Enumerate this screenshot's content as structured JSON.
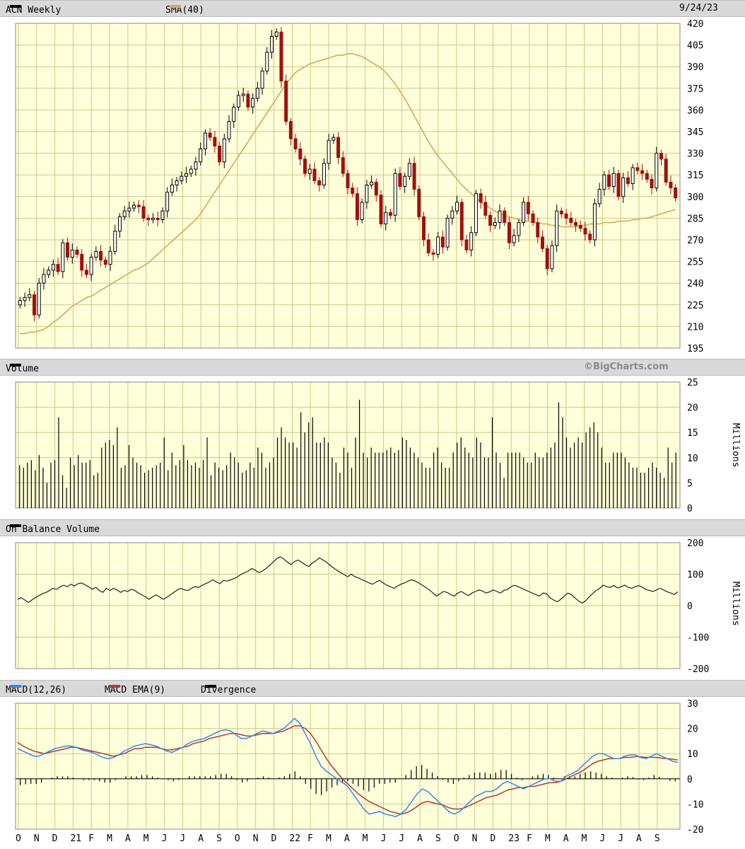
{
  "headers": {
    "price": {
      "symbol": "ACN Weekly",
      "sma": "SMA(40)",
      "date": "9/24/23"
    },
    "volume": {
      "label": "Volume",
      "watermark": "©BigCharts.com"
    },
    "obv": {
      "label": "On Balance Volume"
    },
    "macd": {
      "label": "MACD(12,26)",
      "ema": "MACD EMA(9)",
      "div": "Divergence"
    }
  },
  "units": {
    "volume": "Millions",
    "obv": "Millions"
  },
  "colors": {
    "up": "#000000",
    "down": "#a01010",
    "sma": "#d8a85c",
    "macd": "#3388ee",
    "ema": "#b03a3a",
    "grid": "#c9c98f",
    "bg": "#ffffd9"
  },
  "chart_data": [
    {
      "type": "candlestick",
      "name": "price",
      "ylim": [
        195,
        420
      ],
      "yticks": [
        195,
        210,
        225,
        240,
        255,
        270,
        285,
        300,
        315,
        330,
        345,
        360,
        375,
        390,
        405,
        420
      ],
      "xticks": [
        "O",
        "N",
        "D",
        "21",
        "F",
        "M",
        "A",
        "M",
        "J",
        "J",
        "A",
        "S",
        "O",
        "N",
        "D",
        "22",
        "F",
        "M",
        "A",
        "M",
        "J",
        "J",
        "A",
        "S",
        "O",
        "N",
        "D",
        "23",
        "F",
        "M",
        "A",
        "M",
        "J",
        "J",
        "A",
        "S"
      ],
      "close": [
        228,
        230,
        232,
        218,
        240,
        246,
        249,
        253,
        248,
        268,
        258,
        263,
        260,
        249,
        246,
        258,
        262,
        256,
        253,
        262,
        276,
        286,
        290,
        292,
        294,
        293,
        285,
        284,
        285,
        284,
        290,
        303,
        308,
        311,
        314,
        316,
        319,
        324,
        333,
        344,
        341,
        335,
        324,
        340,
        352,
        362,
        370,
        371,
        362,
        368,
        375,
        387,
        400,
        411,
        414,
        380,
        352,
        340,
        333,
        326,
        316,
        319,
        311,
        308,
        323,
        339,
        341,
        327,
        316,
        306,
        302,
        284,
        296,
        308,
        310,
        301,
        281,
        289,
        287,
        316,
        307,
        314,
        323,
        305,
        286,
        270,
        261,
        260,
        272,
        265,
        285,
        290,
        296,
        270,
        263,
        275,
        302,
        296,
        287,
        280,
        282,
        290,
        282,
        268,
        273,
        282,
        296,
        288,
        282,
        272,
        264,
        250,
        266,
        290,
        288,
        285,
        282,
        280,
        278,
        274,
        270,
        295,
        305,
        315,
        307,
        316,
        300,
        313,
        309,
        320,
        318,
        316,
        312,
        306,
        330,
        326,
        310,
        306,
        299
      ],
      "sma": [
        205,
        205,
        206,
        206,
        207,
        208,
        210,
        213,
        215,
        218,
        221,
        224,
        226,
        228,
        230,
        231,
        233,
        235,
        237,
        239,
        241,
        243,
        245,
        247,
        249,
        250,
        252,
        254,
        257,
        260,
        263,
        266,
        269,
        272,
        275,
        278,
        281,
        284,
        288,
        293,
        298,
        303,
        308,
        313,
        318,
        323,
        328,
        333,
        338,
        343,
        348,
        353,
        358,
        363,
        368,
        373,
        378,
        382,
        386,
        388,
        390,
        392,
        393,
        394,
        395,
        396,
        397,
        398,
        398,
        399,
        399,
        398,
        397,
        395,
        393,
        391,
        389,
        386,
        382,
        378,
        373,
        368,
        362,
        356,
        350,
        344,
        338,
        333,
        328,
        324,
        320,
        316,
        312,
        308,
        305,
        302,
        299,
        296,
        294,
        292,
        290,
        288,
        287,
        286,
        285,
        284,
        283,
        283,
        282,
        282,
        281,
        281,
        280,
        280,
        279,
        279,
        279,
        279,
        280,
        280,
        281,
        281,
        281,
        282,
        282,
        282,
        283,
        283,
        283,
        284,
        284,
        285,
        285,
        286,
        287,
        288,
        289,
        290,
        291
      ]
    },
    {
      "type": "bar",
      "name": "volume",
      "ylim": [
        0,
        25
      ],
      "yticks": [
        0,
        5,
        10,
        15,
        20,
        25
      ],
      "values": [
        8.5,
        8,
        9,
        9.5,
        7.5,
        10.5,
        8,
        5,
        9,
        9.5,
        18,
        6.5,
        4,
        10,
        8.5,
        10.5,
        9,
        9,
        9.5,
        6.5,
        7,
        12,
        13,
        13.5,
        12.5,
        16,
        8,
        8.5,
        12.5,
        10,
        9,
        8.5,
        7,
        7.5,
        8,
        8.5,
        9,
        14,
        7.5,
        11,
        8.5,
        9.5,
        12.5,
        9.5,
        8.5,
        9,
        8,
        9.5,
        14,
        6.5,
        9,
        8,
        7.5,
        8.5,
        11,
        10,
        9,
        7,
        7.5,
        9,
        8,
        12,
        11,
        8,
        9,
        10,
        14,
        16,
        14,
        13,
        13,
        12,
        19,
        15,
        17,
        18,
        13,
        13,
        14,
        13,
        10,
        9,
        7,
        12,
        11,
        8,
        14,
        21.5,
        11,
        10,
        12,
        11,
        11,
        11,
        11.5,
        12,
        11,
        11.5,
        14,
        13.5,
        12,
        11,
        10,
        9,
        8,
        8,
        11,
        12,
        9,
        8,
        8,
        11,
        13,
        14,
        12,
        11,
        10,
        14,
        13,
        10,
        10,
        18,
        11,
        9,
        6,
        11,
        11,
        11,
        11,
        10,
        9,
        9,
        11,
        10,
        10,
        11,
        12,
        13,
        21,
        18,
        14,
        12,
        13,
        14,
        13,
        15,
        16,
        17,
        15,
        12,
        9,
        9,
        11,
        11,
        11,
        10,
        9,
        8,
        8,
        7,
        7,
        8,
        9,
        8,
        7,
        6,
        12,
        9,
        11
      ]
    },
    {
      "type": "line",
      "name": "obv",
      "ylim": [
        -200,
        200
      ],
      "yticks": [
        -200,
        -100,
        0,
        100,
        200
      ],
      "values": [
        20,
        25,
        18,
        10,
        18,
        25,
        32,
        38,
        42,
        48,
        55,
        52,
        60,
        65,
        60,
        68,
        62,
        70,
        72,
        66,
        60,
        52,
        58,
        48,
        42,
        55,
        48,
        55,
        50,
        42,
        48,
        45,
        52,
        48,
        40,
        34,
        28,
        20,
        28,
        34,
        28,
        20,
        26,
        34,
        42,
        50,
        55,
        50,
        48,
        55,
        60,
        58,
        65,
        70,
        75,
        82,
        75,
        70,
        80,
        78,
        82,
        86,
        92,
        100,
        105,
        110,
        118,
        112,
        105,
        110,
        118,
        128,
        138,
        150,
        155,
        148,
        138,
        130,
        140,
        145,
        138,
        130,
        124,
        135,
        142,
        152,
        145,
        138,
        128,
        120,
        112,
        105,
        98,
        92,
        100,
        92,
        88,
        82,
        78,
        72,
        68,
        75,
        80,
        72,
        65,
        60,
        55,
        62,
        68,
        72,
        78,
        82,
        78,
        72,
        65,
        58,
        50,
        40,
        30,
        38,
        45,
        42,
        35,
        30,
        40,
        45,
        38,
        32,
        40,
        45,
        50,
        46,
        40,
        44,
        50,
        45,
        40,
        48,
        52,
        60,
        65,
        60,
        55,
        50,
        45,
        40,
        35,
        30,
        40,
        38,
        25,
        18,
        12,
        20,
        30,
        40,
        35,
        25,
        15,
        8,
        15,
        28,
        38,
        48,
        55,
        65,
        60,
        58,
        64,
        56,
        60,
        65,
        58,
        55,
        60,
        64,
        58,
        52,
        48,
        45,
        50,
        55,
        50,
        44,
        40,
        35,
        44
      ]
    },
    {
      "type": "line",
      "name": "macd",
      "ylim": [
        -20,
        30
      ],
      "yticks": [
        -20,
        -10,
        0,
        10,
        20,
        30
      ],
      "macd": [
        12,
        11,
        10,
        9,
        9,
        10,
        11,
        12,
        12.5,
        13,
        13,
        12.5,
        11.5,
        11,
        10.5,
        9.5,
        8.5,
        8,
        8.5,
        9.5,
        11,
        12,
        13,
        13.5,
        14,
        13.5,
        13,
        12,
        11,
        10.5,
        11.5,
        12.5,
        14,
        15,
        15.5,
        16,
        17,
        18,
        19,
        19.5,
        19,
        17.5,
        16,
        16,
        17,
        18,
        19,
        18.5,
        18,
        19,
        20,
        22,
        24,
        22,
        18,
        14,
        9,
        5,
        3,
        1.5,
        0,
        -1.5,
        -3,
        -6,
        -9,
        -12,
        -14,
        -13.5,
        -13,
        -14,
        -14.5,
        -15,
        -14,
        -12,
        -9,
        -6,
        -4,
        -5,
        -7,
        -9,
        -11,
        -13,
        -14,
        -13,
        -11,
        -9,
        -7,
        -6,
        -5,
        -5,
        -4,
        -2,
        -1,
        -2,
        -3,
        -4,
        -3,
        -2,
        -1,
        0,
        0,
        -1,
        -1,
        1,
        2,
        3,
        5,
        7,
        9,
        10,
        10,
        9,
        8,
        8,
        9,
        9.5,
        9.5,
        8.5,
        8,
        9,
        10,
        9,
        8,
        7,
        6.5
      ],
      "ema": [
        14.5,
        13,
        12,
        11,
        10.5,
        10,
        10.5,
        11,
        11.5,
        12,
        12.5,
        12.5,
        12,
        11.5,
        11,
        10.5,
        10,
        9.5,
        9,
        9.5,
        10,
        11,
        12,
        12,
        12.5,
        12.5,
        12.5,
        12,
        11.5,
        11.5,
        12,
        12.5,
        13,
        14,
        14.5,
        15,
        16,
        16.5,
        17,
        17.5,
        18,
        18,
        17.5,
        17,
        17,
        17.5,
        18,
        18,
        18,
        18.5,
        19,
        20,
        21,
        21,
        20,
        18,
        15,
        11.5,
        8,
        5,
        2.5,
        0,
        -2,
        -4,
        -6,
        -7.5,
        -9,
        -10,
        -11,
        -12,
        -13,
        -13.5,
        -14,
        -13.5,
        -12.5,
        -11,
        -9.5,
        -9,
        -9.5,
        -10,
        -10.5,
        -11.5,
        -12,
        -12,
        -11.5,
        -10.5,
        -9.5,
        -8.5,
        -7.5,
        -7,
        -6.5,
        -5.5,
        -4.5,
        -4,
        -3.5,
        -3.5,
        -3,
        -3,
        -2.5,
        -2,
        -1.5,
        -1.5,
        -1,
        0,
        1,
        2,
        3,
        4.5,
        6,
        7,
        7.5,
        8,
        8,
        8,
        8.5,
        8.5,
        8.8,
        8.8,
        8.5,
        8.5,
        8.5,
        8.2,
        8,
        7.8,
        7.5
      ],
      "divergence": [
        -2.5,
        -2.2,
        -2,
        -2,
        -1.5,
        0,
        0.5,
        1,
        1,
        1,
        0.5,
        0,
        -0.5,
        -0.5,
        -0.5,
        -1,
        -1.5,
        -1.5,
        -0.5,
        0,
        1,
        1,
        1,
        1.5,
        1.5,
        1,
        0.5,
        0,
        -0.5,
        -1,
        -0.5,
        0,
        1,
        1,
        1,
        1,
        1,
        1.5,
        2,
        2,
        1,
        -0.5,
        -1.5,
        -1,
        0,
        0.5,
        1,
        0.5,
        0,
        0.5,
        1,
        2,
        3,
        1,
        -2,
        -4,
        -6,
        -6.5,
        -5,
        -3.5,
        -2.5,
        -1.5,
        -1,
        -2,
        -3,
        -4.5,
        -5,
        -3.5,
        -2,
        -2,
        -1.5,
        -1.5,
        0,
        1.5,
        3.5,
        5,
        5.5,
        4,
        2.5,
        1,
        -0.5,
        -1.5,
        -2,
        -1,
        0.5,
        1.5,
        2.5,
        2.5,
        2.5,
        2,
        2.5,
        3.5,
        3.5,
        2,
        0.5,
        -0.5,
        0,
        1,
        1.5,
        2,
        1.5,
        0.5,
        0,
        1,
        1,
        1,
        2,
        2.5,
        3,
        2.5,
        2,
        1,
        0.5,
        0,
        0.5,
        1,
        0.7,
        -0.3,
        -0.5,
        0.5,
        1.5,
        0.8,
        0,
        -0.8,
        -1
      ]
    }
  ]
}
